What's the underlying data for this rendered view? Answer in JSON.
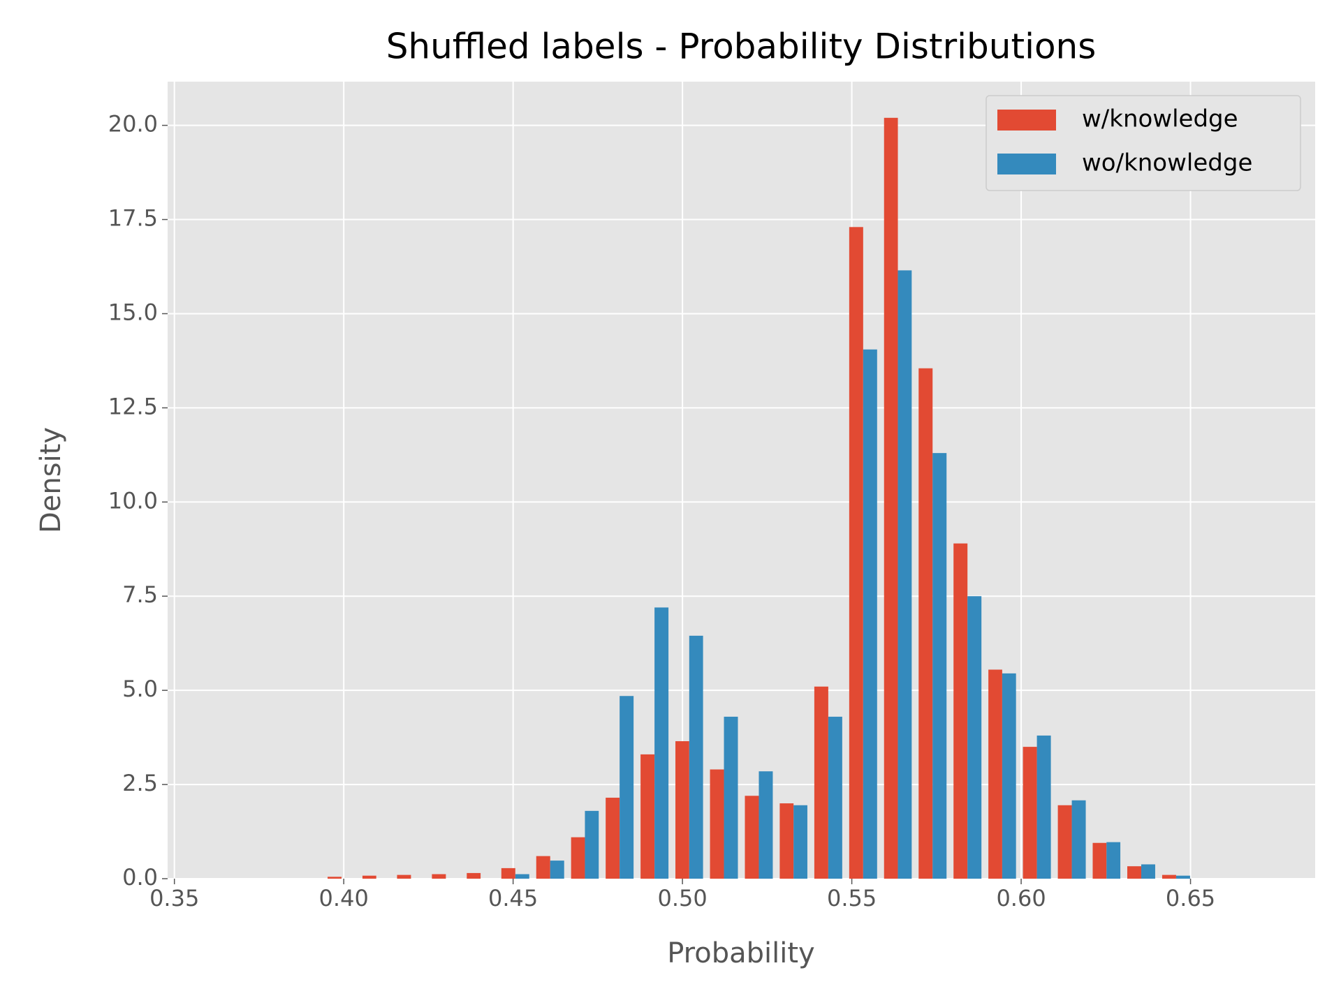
{
  "chart_data": {
    "type": "histogram",
    "title": "Shuffled labels - Probability Distributions",
    "xlabel": "Probability",
    "ylabel": "Density",
    "bins": [
      0.3634,
      0.3737,
      0.3839,
      0.3942,
      0.4045,
      0.4147,
      0.425,
      0.4353,
      0.4455,
      0.4558,
      0.4661,
      0.4763,
      0.4866,
      0.4969,
      0.5071,
      0.5174,
      0.5277,
      0.5379,
      0.5482,
      0.5585,
      0.5687,
      0.579,
      0.5893,
      0.5995,
      0.6098,
      0.6201,
      0.6303,
      0.6406,
      0.6509,
      0.6611,
      0.6714
    ],
    "series": [
      {
        "name": "w/knowledge",
        "color": "#E24A33",
        "values": [
          0,
          0,
          0,
          0.05,
          0.08,
          0.1,
          0.12,
          0.15,
          0.28,
          0.6,
          1.1,
          2.15,
          3.3,
          3.65,
          2.9,
          2.2,
          2.0,
          5.1,
          17.3,
          20.2,
          13.55,
          8.9,
          5.55,
          3.5,
          1.95,
          0.95,
          0.33,
          0.1,
          0,
          0
        ]
      },
      {
        "name": "wo/knowledge",
        "color": "#348ABD",
        "values": [
          0,
          0,
          0,
          0,
          0,
          0,
          0,
          0,
          0.12,
          0.48,
          1.8,
          4.85,
          7.2,
          6.45,
          4.3,
          2.85,
          1.95,
          4.3,
          14.05,
          16.15,
          11.3,
          7.5,
          5.45,
          3.8,
          2.08,
          0.97,
          0.38,
          0.08,
          0,
          0
        ]
      }
    ],
    "xlim": [
      0.348,
      0.6868
    ],
    "xticks": [
      0.35,
      {
        "value": 0.4,
        "label": "0.40"
      },
      0.45,
      {
        "value": 0.5,
        "label": "0.50"
      },
      0.55,
      {
        "value": 0.6,
        "label": "0.60"
      },
      0.65
    ],
    "ylim": [
      0,
      21.16
    ],
    "yticks": [
      {
        "value": 0,
        "label": "0.0"
      },
      2.5,
      {
        "value": 5,
        "label": "5.0"
      },
      7.5,
      {
        "value": 10,
        "label": "10.0"
      },
      12.5,
      {
        "value": 15,
        "label": "15.0"
      },
      17.5,
      {
        "value": 20,
        "label": "20.0"
      }
    ],
    "grid": true,
    "legend": "upper right"
  }
}
